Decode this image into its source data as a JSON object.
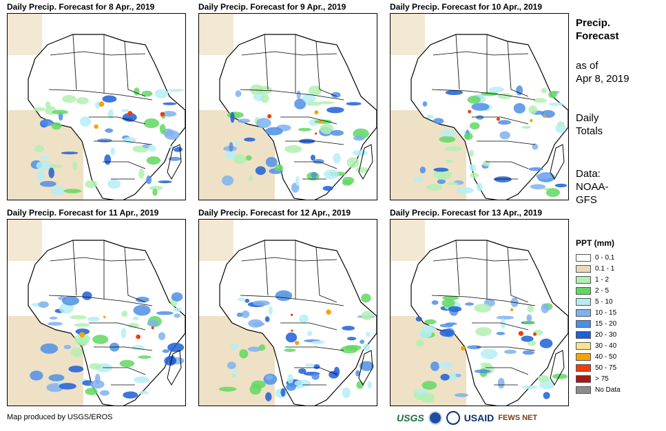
{
  "side": {
    "title_line1": "Precip.",
    "title_line2": "Forecast",
    "asof_line1": "as of",
    "asof_line2": "Apr 8, 2019",
    "totals_line1": "Daily",
    "totals_line2": "Totals",
    "data_line1": "Data:",
    "data_line2": "NOAA-",
    "data_line3": "GFS"
  },
  "panels": [
    {
      "title": "Daily Precip. Forecast for 8 Apr., 2019"
    },
    {
      "title": "Daily Precip. Forecast for 9 Apr., 2019"
    },
    {
      "title": "Daily Precip. Forecast for 10 Apr., 2019"
    },
    {
      "title": "Daily Precip. Forecast for 11 Apr., 2019"
    },
    {
      "title": "Daily Precip. Forecast for 12 Apr., 2019"
    },
    {
      "title": "Daily Precip. Forecast for 13 Apr., 2019"
    }
  ],
  "legend": {
    "title": "PPT (mm)",
    "items": [
      {
        "label": "0 - 0.1",
        "color": "#ffffff"
      },
      {
        "label": "0.1 - 1",
        "color": "#ead9b6"
      },
      {
        "label": "1 - 2",
        "color": "#b2f0b2"
      },
      {
        "label": "2 - 5",
        "color": "#62d862"
      },
      {
        "label": "5 - 10",
        "color": "#b4eef4"
      },
      {
        "label": "10 - 15",
        "color": "#7fb2f0"
      },
      {
        "label": "15 - 20",
        "color": "#4d8fe6"
      },
      {
        "label": "20 - 30",
        "color": "#1f5fd6"
      },
      {
        "label": "30 - 40",
        "color": "#fbe38e"
      },
      {
        "label": "40 - 50",
        "color": "#f6a30a"
      },
      {
        "label": "50 - 75",
        "color": "#f03c0a"
      },
      {
        "label": "> 75",
        "color": "#a81818"
      },
      {
        "label": "No Data",
        "color": "#8c8c8c"
      }
    ]
  },
  "credit": "Map produced by USGS/EROS",
  "logos": {
    "usgs": "USGS",
    "usaid": "USAID",
    "fews": "FEWS NET"
  }
}
